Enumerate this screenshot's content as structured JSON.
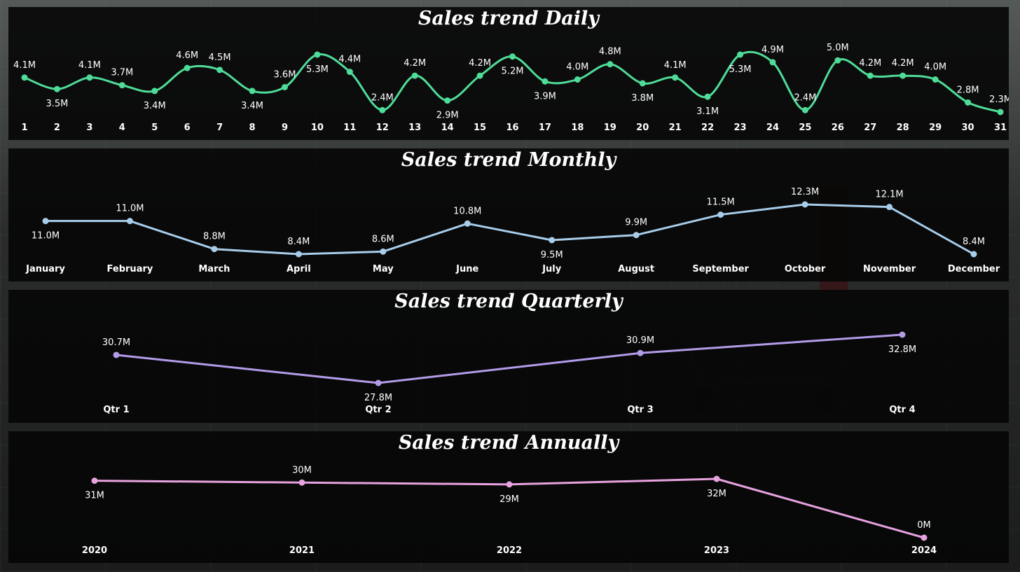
{
  "colors": {
    "daily": "#4fdc98",
    "monthly": "#a8cdea",
    "quarterly": "#b49be9",
    "annually": "#e7a2df",
    "text": "#ffffff"
  },
  "chart_data": [
    {
      "type": "line",
      "title": "Sales trend Daily",
      "smooth": true,
      "categories": [
        "1",
        "2",
        "3",
        "4",
        "5",
        "6",
        "7",
        "8",
        "9",
        "10",
        "11",
        "12",
        "13",
        "14",
        "15",
        "16",
        "17",
        "18",
        "19",
        "20",
        "21",
        "22",
        "23",
        "24",
        "25",
        "26",
        "27",
        "28",
        "29",
        "30",
        "31"
      ],
      "values": [
        4.1,
        3.5,
        4.1,
        3.7,
        3.4,
        4.6,
        4.5,
        3.4,
        3.6,
        5.3,
        4.4,
        2.4,
        4.2,
        2.9,
        4.2,
        5.2,
        3.9,
        4.0,
        4.8,
        3.8,
        4.1,
        3.1,
        5.3,
        4.9,
        2.4,
        5.0,
        4.2,
        4.2,
        4.0,
        2.8,
        2.3
      ],
      "labels": [
        "4.1M",
        "3.5M",
        "4.1M",
        "3.7M",
        "3.4M",
        "4.6M",
        "4.5M",
        "3.4M",
        "3.6M",
        "5.3M",
        "4.4M",
        "2.4M",
        "4.2M",
        "2.9M",
        "4.2M",
        "5.2M",
        "3.9M",
        "4.0M",
        "4.8M",
        "3.8M",
        "4.1M",
        "3.1M",
        "5.3M",
        "4.9M",
        "2.4M",
        "5.0M",
        "4.2M",
        "4.2M",
        "4.0M",
        "2.8M",
        "2.3M"
      ],
      "label_positions": [
        "above",
        "below",
        "above",
        "above",
        "below",
        "above",
        "above",
        "below",
        "above",
        "below",
        "above",
        "above",
        "above",
        "below",
        "above",
        "below",
        "below",
        "above",
        "above",
        "below",
        "above",
        "below",
        "below",
        "above",
        "above",
        "above",
        "above",
        "above",
        "above",
        "above",
        "above"
      ]
    },
    {
      "type": "line",
      "title": "Sales trend Monthly",
      "categories": [
        "January",
        "February",
        "March",
        "April",
        "May",
        "June",
        "July",
        "August",
        "September",
        "October",
        "November",
        "December"
      ],
      "values": [
        11.0,
        11.0,
        8.8,
        8.4,
        8.6,
        10.8,
        9.5,
        9.9,
        11.5,
        12.3,
        12.1,
        8.4
      ],
      "labels": [
        "11.0M",
        "11.0M",
        "8.8M",
        "8.4M",
        "8.6M",
        "10.8M",
        "9.5M",
        "9.9M",
        "11.5M",
        "12.3M",
        "12.1M",
        "8.4M"
      ],
      "label_positions": [
        "below",
        "above",
        "above",
        "above",
        "above",
        "above",
        "below",
        "above",
        "above",
        "above",
        "above",
        "above"
      ]
    },
    {
      "type": "line",
      "title": "Sales trend Quarterly",
      "categories": [
        "Qtr 1",
        "Qtr 2",
        "Qtr 3",
        "Qtr 4"
      ],
      "values": [
        30.7,
        27.8,
        30.9,
        32.8
      ],
      "labels": [
        "30.7M",
        "27.8M",
        "30.9M",
        "32.8M"
      ],
      "label_positions": [
        "above",
        "below",
        "above",
        "below"
      ]
    },
    {
      "type": "line",
      "title": "Sales trend Annually",
      "categories": [
        "2020",
        "2021",
        "2022",
        "2023",
        "2024"
      ],
      "values": [
        31,
        30,
        29,
        32,
        0
      ],
      "labels": [
        "31M",
        "30M",
        "29M",
        "32M",
        "0M"
      ],
      "label_positions": [
        "below",
        "above",
        "below",
        "below",
        "above"
      ]
    }
  ]
}
